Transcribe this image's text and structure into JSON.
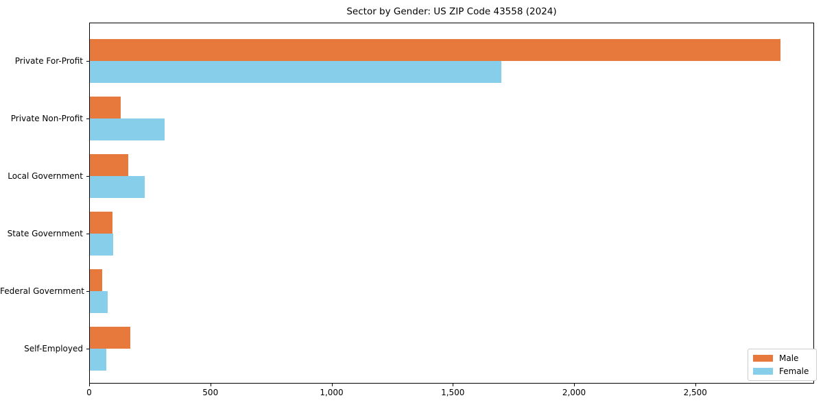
{
  "chart_data": {
    "type": "bar",
    "orientation": "horizontal",
    "title": "Sector by Gender: US ZIP Code 43558 (2024)",
    "categories": [
      "Private For-Profit",
      "Private Non-Profit",
      "Local Government",
      "State Government",
      "Federal Government",
      "Self-Employed"
    ],
    "series": [
      {
        "name": "Male",
        "color": "#e8793d",
        "values": [
          2850,
          130,
          160,
          95,
          55,
          170
        ]
      },
      {
        "name": "Female",
        "color": "#87ceeb",
        "values": [
          1700,
          310,
          230,
          100,
          75,
          70
        ]
      }
    ],
    "xlim": [
      0,
      2990
    ],
    "xticks": [
      0,
      500,
      1000,
      1500,
      2000,
      2500
    ],
    "xtick_labels": [
      "0",
      "500",
      "1,000",
      "1,500",
      "2,000",
      "2,500"
    ],
    "xlabel": "",
    "ylabel": "",
    "grid": false,
    "legend": {
      "position": "lower right"
    },
    "axis_color": "#000000",
    "background_color": "#ffffff"
  }
}
